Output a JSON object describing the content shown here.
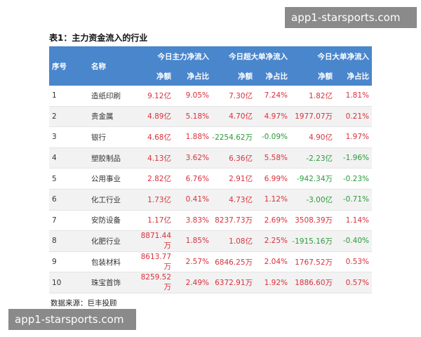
{
  "watermark_top": "app1-starsports.com",
  "watermark_bottom": "app1-starsports.com",
  "title": "表1：主力资金流入的行业",
  "header": {
    "seq": "序号",
    "name": "名称",
    "group1": "今日主力净流入",
    "group2": "今日超大单净流入",
    "group3": "今日大单净流入",
    "amount": "净额",
    "ratio": "净占比"
  },
  "rows": [
    {
      "seq": "1",
      "name": "造纸印刷",
      "c1": "9.12亿",
      "c2": "9.05%",
      "c3": "7.30亿",
      "c4": "7.24%",
      "c5": "1.82亿",
      "c6": "1.81%"
    },
    {
      "seq": "2",
      "name": "贵金属",
      "c1": "4.89亿",
      "c2": "5.18%",
      "c3": "4.70亿",
      "c4": "4.97%",
      "c5": "1977.07万",
      "c6": "0.21%"
    },
    {
      "seq": "3",
      "name": "银行",
      "c1": "4.68亿",
      "c2": "1.88%",
      "c3": "-2254.62万",
      "c4": "-0.09%",
      "c5": "4.90亿",
      "c6": "1.97%"
    },
    {
      "seq": "4",
      "name": "塑胶制品",
      "c1": "4.13亿",
      "c2": "3.62%",
      "c3": "6.36亿",
      "c4": "5.58%",
      "c5": "-2.23亿",
      "c6": "-1.96%"
    },
    {
      "seq": "5",
      "name": "公用事业",
      "c1": "2.82亿",
      "c2": "6.76%",
      "c3": "2.91亿",
      "c4": "6.99%",
      "c5": "-942.34万",
      "c6": "-0.23%"
    },
    {
      "seq": "6",
      "name": "化工行业",
      "c1": "1.73亿",
      "c2": "0.41%",
      "c3": "4.73亿",
      "c4": "1.12%",
      "c5": "-3.00亿",
      "c6": "-0.71%"
    },
    {
      "seq": "7",
      "name": "安防设备",
      "c1": "1.17亿",
      "c2": "3.83%",
      "c3": "8237.73万",
      "c4": "2.69%",
      "c5": "3508.39万",
      "c6": "1.14%"
    },
    {
      "seq": "8",
      "name": "化肥行业",
      "c1": "8871.44万",
      "c2": "1.85%",
      "c3": "1.08亿",
      "c4": "2.25%",
      "c5": "-1915.16万",
      "c6": "-0.40%"
    },
    {
      "seq": "9",
      "name": "包装材料",
      "c1": "8613.77万",
      "c2": "2.57%",
      "c3": "6846.25万",
      "c4": "2.04%",
      "c5": "1767.52万",
      "c6": "0.53%"
    },
    {
      "seq": "10",
      "name": "珠宝首饰",
      "c1": "8259.52万",
      "c2": "2.49%",
      "c3": "6372.91万",
      "c4": "1.92%",
      "c5": "1886.60万",
      "c6": "0.57%"
    }
  ],
  "source": "数据来源：巨丰投顾",
  "colors": {
    "header_bg": "#4a86cc",
    "positive": "#d9303c",
    "negative": "#2a9a3a",
    "watermark_bg": "#8a8a8a"
  }
}
